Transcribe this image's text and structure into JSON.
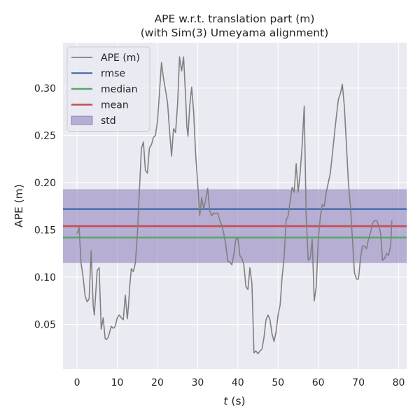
{
  "chart_data": {
    "type": "line",
    "title": "APE w.r.t. translation part (m)",
    "subtitle": "(with Sim(3) Umeyama alignment)",
    "xlabel_var": "t",
    "xlabel_unit": " (s)",
    "ylabel": "APE (m)",
    "xlim": [
      -3.5,
      82
    ],
    "ylim": [
      0.003,
      0.348
    ],
    "xticks": [
      0,
      10,
      20,
      30,
      40,
      50,
      60,
      70,
      80
    ],
    "xtick_labels": [
      "0",
      "10",
      "20",
      "30",
      "40",
      "50",
      "60",
      "70",
      "80"
    ],
    "yticks": [
      0.05,
      0.1,
      0.15,
      0.2,
      0.25,
      0.3
    ],
    "ytick_labels": [
      "0.05",
      "0.10",
      "0.15",
      "0.20",
      "0.25",
      "0.30"
    ],
    "grid": true,
    "legend_position": "top-left",
    "colors": {
      "background": "#eaeaf2",
      "grid": "#ffffff",
      "ape": "#808080",
      "rmse": "#4c72b0",
      "median": "#55a868",
      "mean": "#c44e52",
      "std_fill": "#8172b3"
    },
    "legend": [
      {
        "label": "APE (m)",
        "kind": "line",
        "color_key": "ape"
      },
      {
        "label": "rmse",
        "kind": "line",
        "color_key": "rmse"
      },
      {
        "label": "median",
        "kind": "line",
        "color_key": "median"
      },
      {
        "label": "mean",
        "kind": "line",
        "color_key": "mean"
      },
      {
        "label": "std",
        "kind": "patch",
        "color_key": "std_fill"
      }
    ],
    "stats": {
      "rmse": 0.172,
      "median": 0.142,
      "mean": 0.154,
      "std_low": 0.115,
      "std_high": 0.193
    },
    "series": [
      {
        "name": "APE (m)",
        "x": [
          0,
          0.5,
          1,
          1.5,
          2,
          2.5,
          3,
          3.5,
          4,
          4.3,
          4.6,
          5,
          5.5,
          6,
          6.5,
          7,
          7.3,
          7.7,
          8,
          8.5,
          9,
          9.5,
          10,
          10.5,
          11,
          11.5,
          12,
          12.5,
          12.8,
          13.1,
          13.5,
          14,
          14.5,
          15,
          15.5,
          16,
          16.5,
          17,
          17.5,
          18,
          18.5,
          19,
          19.5,
          20,
          20.5,
          21,
          21.5,
          22,
          22.5,
          23,
          23.5,
          24,
          24.5,
          25,
          25.5,
          26,
          26.5,
          27,
          27.3,
          27.6,
          28,
          28.5,
          29,
          29.5,
          30,
          30.5,
          31,
          31.5,
          32,
          32.5,
          33,
          33.5,
          34,
          34.5,
          35,
          35.5,
          36,
          36.5,
          37,
          37.5,
          38,
          38.5,
          39,
          39.5,
          40,
          40.5,
          41,
          41.5,
          42,
          42.5,
          43,
          43.5,
          44,
          44.5,
          45,
          45.5,
          46,
          46.5,
          47,
          47.5,
          48,
          48.5,
          49,
          49.5,
          50,
          50.5,
          51,
          51.5,
          52,
          52.5,
          53,
          53.5,
          54,
          54.5,
          55,
          55.5,
          56,
          56.5,
          57,
          57.5,
          58,
          58.5,
          59,
          59.5,
          60,
          60.5,
          61,
          61.5,
          62,
          62.5,
          63,
          63.5,
          64,
          64.5,
          65,
          65.5,
          66,
          66.5,
          67,
          67.5,
          68,
          68.5,
          69,
          69.5,
          70,
          70.5,
          71,
          71.5,
          72,
          72.5,
          73,
          73.5,
          74,
          74.5,
          75,
          75.5,
          76,
          76.5,
          77,
          77.5,
          78,
          78.3
        ],
        "y": [
          0.146,
          0.153,
          0.115,
          0.1,
          0.08,
          0.074,
          0.077,
          0.128,
          0.07,
          0.06,
          0.08,
          0.107,
          0.11,
          0.045,
          0.057,
          0.035,
          0.034,
          0.036,
          0.04,
          0.048,
          0.046,
          0.048,
          0.057,
          0.06,
          0.057,
          0.055,
          0.081,
          0.056,
          0.07,
          0.09,
          0.109,
          0.106,
          0.115,
          0.145,
          0.19,
          0.236,
          0.243,
          0.213,
          0.21,
          0.237,
          0.24,
          0.248,
          0.25,
          0.265,
          0.295,
          0.327,
          0.31,
          0.298,
          0.285,
          0.255,
          0.228,
          0.257,
          0.253,
          0.283,
          0.333,
          0.318,
          0.333,
          0.29,
          0.26,
          0.249,
          0.28,
          0.301,
          0.275,
          0.23,
          0.2,
          0.165,
          0.184,
          0.172,
          0.182,
          0.194,
          0.17,
          0.165,
          0.168,
          0.167,
          0.168,
          0.16,
          0.155,
          0.146,
          0.134,
          0.117,
          0.116,
          0.113,
          0.124,
          0.14,
          0.142,
          0.123,
          0.12,
          0.113,
          0.09,
          0.087,
          0.11,
          0.093,
          0.02,
          0.022,
          0.019,
          0.022,
          0.024,
          0.036,
          0.055,
          0.06,
          0.055,
          0.04,
          0.032,
          0.042,
          0.06,
          0.07,
          0.1,
          0.12,
          0.16,
          0.165,
          0.18,
          0.195,
          0.19,
          0.22,
          0.19,
          0.21,
          0.24,
          0.281,
          0.165,
          0.118,
          0.12,
          0.14,
          0.075,
          0.09,
          0.14,
          0.163,
          0.177,
          0.175,
          0.19,
          0.2,
          0.21,
          0.23,
          0.25,
          0.27,
          0.288,
          0.294,
          0.304,
          0.28,
          0.24,
          0.2,
          0.175,
          0.14,
          0.105,
          0.098,
          0.098,
          0.12,
          0.133,
          0.133,
          0.13,
          0.14,
          0.147,
          0.157,
          0.16,
          0.16,
          0.155,
          0.147,
          0.118,
          0.12,
          0.125,
          0.123,
          0.133,
          0.16
        ]
      }
    ]
  }
}
